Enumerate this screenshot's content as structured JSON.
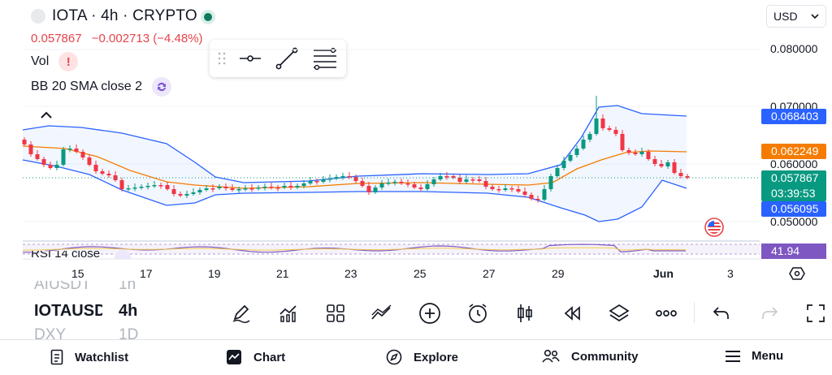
{
  "header": {
    "symbol_title": "IOTA · 4h · CRYPTO",
    "price": "0.057867",
    "change": "−0.002713 (−4.48%)",
    "currency": "USD"
  },
  "indicators": {
    "vol_label": "Vol",
    "bb_label": "BB 20 SMA close 2",
    "rsi_label": "RSI 14 close"
  },
  "price_axis": {
    "labels": [
      "0.080000",
      "0.070000",
      "0.060000",
      "0.050000"
    ],
    "tags": [
      {
        "value": "0.068403",
        "color": "#2962ff"
      },
      {
        "value": "0.062249",
        "color": "#f57c00"
      },
      {
        "value": "0.057867",
        "color": "#089981"
      },
      {
        "value": "03:39:53",
        "color": "#089981"
      },
      {
        "value": "0.056095",
        "color": "#2962ff"
      }
    ],
    "rsi_value": "41.94"
  },
  "time_axis": {
    "labels": [
      "15",
      "17",
      "19",
      "21",
      "23",
      "25",
      "27",
      "29",
      "Jun",
      "3"
    ]
  },
  "symbol_list": {
    "items": [
      "AIUSDT",
      "IOTAUSD",
      "DXY"
    ],
    "intervals": [
      "1h",
      "4h",
      "1D"
    ]
  },
  "bottom_tools": [
    "pencil-icon",
    "chart-indicators-icon",
    "layout-grid-icon",
    "compare-icon",
    "add-icon",
    "alarm-icon",
    "candles-icon",
    "replay-icon",
    "layers-icon",
    "more-icon",
    "undo-icon",
    "redo-icon",
    "fullscreen-icon"
  ],
  "nav": {
    "watchlist": "Watchlist",
    "chart": "Chart",
    "explore": "Explore",
    "community": "Community",
    "menu": "Menu"
  },
  "colors": {
    "up": "#089981",
    "down": "#f23645",
    "bb_band": "#2962ff",
    "bb_basis": "#f57c00",
    "rsi": "#7e57c2"
  }
}
